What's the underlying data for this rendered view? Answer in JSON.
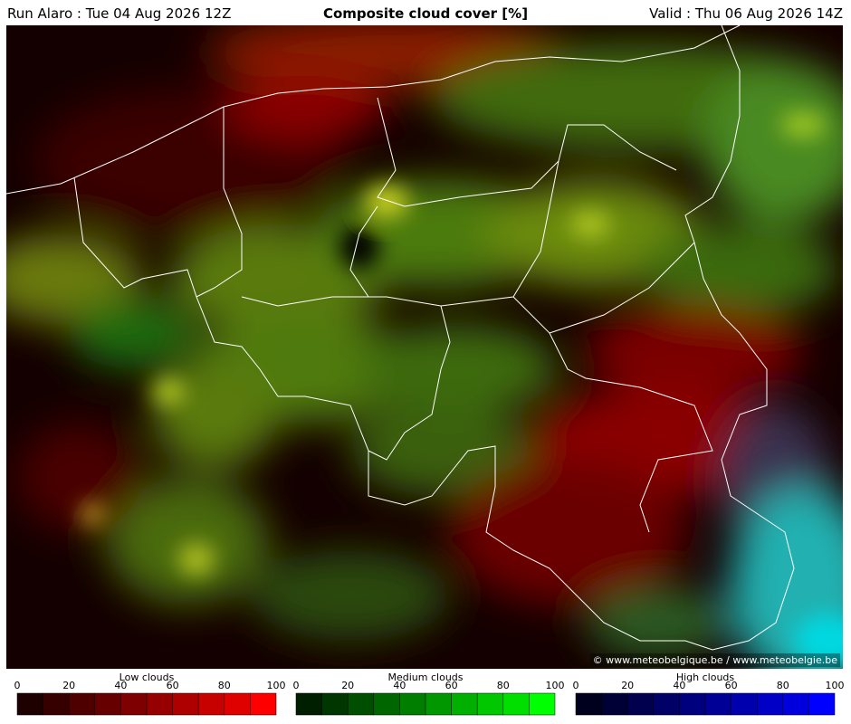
{
  "header": {
    "run": "Run Alaro : Tue 04 Aug 2026 12Z",
    "title": "Composite cloud cover [%]",
    "valid": "Valid : Thu 06 Aug 2026 14Z"
  },
  "credit": "© www.meteobelgique.be / www.meteobelgie.be",
  "legends": [
    {
      "label": "Low clouds",
      "ticks": [
        0,
        20,
        40,
        60,
        80,
        100
      ],
      "colors": [
        "#1e0000",
        "#360000",
        "#4e0000",
        "#660000",
        "#7e0000",
        "#970000",
        "#af0000",
        "#c70000",
        "#df0000",
        "#ff0000"
      ]
    },
    {
      "label": "Medium clouds",
      "ticks": [
        0,
        20,
        40,
        60,
        80,
        100
      ],
      "colors": [
        "#001e00",
        "#003600",
        "#004e00",
        "#006600",
        "#007e00",
        "#009700",
        "#00af00",
        "#00c700",
        "#00df00",
        "#00ff00"
      ]
    },
    {
      "label": "High clouds",
      "ticks": [
        0,
        20,
        40,
        60,
        80,
        100
      ],
      "colors": [
        "#00001e",
        "#000036",
        "#00004e",
        "#000066",
        "#00007e",
        "#000097",
        "#0000af",
        "#0000c7",
        "#0000df",
        "#0000ff"
      ]
    }
  ]
}
